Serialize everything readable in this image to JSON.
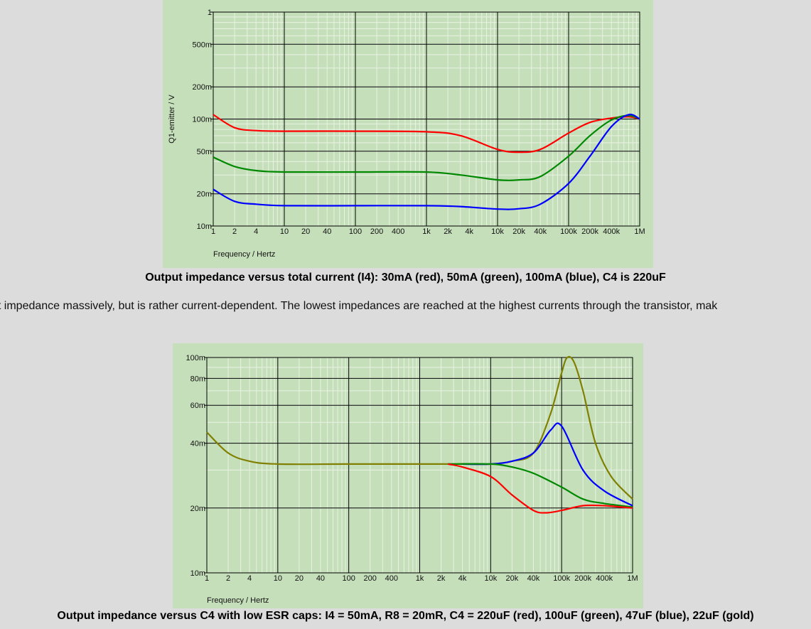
{
  "chart_data": [
    {
      "type": "line",
      "xlabel": "Frequency / Hertz",
      "ylabel": "Q1-emitter / V",
      "x_scale": "log",
      "y_scale": "log",
      "xlim": [
        1,
        1000000
      ],
      "ylim": [
        0.01,
        1
      ],
      "x_ticks": [
        {
          "v": 1,
          "label": "1"
        },
        {
          "v": 2,
          "label": "2"
        },
        {
          "v": 4,
          "label": "4"
        },
        {
          "v": 10,
          "label": "10"
        },
        {
          "v": 20,
          "label": "20"
        },
        {
          "v": 40,
          "label": "40"
        },
        {
          "v": 100,
          "label": "100"
        },
        {
          "v": 200,
          "label": "200"
        },
        {
          "v": 400,
          "label": "400"
        },
        {
          "v": 1000,
          "label": "1k"
        },
        {
          "v": 2000,
          "label": "2k"
        },
        {
          "v": 4000,
          "label": "4k"
        },
        {
          "v": 10000,
          "label": "10k"
        },
        {
          "v": 20000,
          "label": "20k"
        },
        {
          "v": 40000,
          "label": "40k"
        },
        {
          "v": 100000,
          "label": "100k"
        },
        {
          "v": 200000,
          "label": "200k"
        },
        {
          "v": 400000,
          "label": "400k"
        },
        {
          "v": 1000000,
          "label": "1M"
        }
      ],
      "y_ticks": [
        {
          "v": 1,
          "label": "1"
        },
        {
          "v": 0.5,
          "label": "500m"
        },
        {
          "v": 0.2,
          "label": "200m"
        },
        {
          "v": 0.1,
          "label": "100m"
        },
        {
          "v": 0.05,
          "label": "50m"
        },
        {
          "v": 0.02,
          "label": "20m"
        },
        {
          "v": 0.01,
          "label": "10m"
        }
      ],
      "grid": true,
      "series": [
        {
          "color": "#ff0000",
          "x": [
            1,
            2,
            4,
            10,
            100,
            1000,
            3000,
            10000,
            20000,
            40000,
            100000,
            200000,
            400000,
            700000,
            1000000
          ],
          "y": [
            0.11,
            0.083,
            0.078,
            0.077,
            0.077,
            0.076,
            0.07,
            0.052,
            0.049,
            0.052,
            0.074,
            0.093,
            0.102,
            0.105,
            0.1
          ]
        },
        {
          "color": "#008800",
          "x": [
            1,
            2,
            4,
            10,
            100,
            1000,
            3000,
            10000,
            20000,
            40000,
            100000,
            200000,
            400000,
            700000,
            1000000
          ],
          "y": [
            0.044,
            0.036,
            0.033,
            0.032,
            0.032,
            0.032,
            0.03,
            0.027,
            0.027,
            0.029,
            0.045,
            0.07,
            0.098,
            0.108,
            0.1
          ]
        },
        {
          "color": "#0000ff",
          "x": [
            1,
            2,
            4,
            10,
            100,
            1000,
            3000,
            10000,
            20000,
            40000,
            100000,
            200000,
            400000,
            700000,
            1000000
          ],
          "y": [
            0.022,
            0.017,
            0.016,
            0.0155,
            0.0155,
            0.0155,
            0.0152,
            0.0144,
            0.0145,
            0.016,
            0.025,
            0.045,
            0.085,
            0.11,
            0.1
          ]
        }
      ]
    },
    {
      "type": "line",
      "xlabel": "Frequency / Hertz",
      "ylabel": "",
      "x_scale": "log",
      "y_scale": "log",
      "xlim": [
        1,
        1000000
      ],
      "ylim": [
        0.01,
        0.1
      ],
      "x_ticks": [
        {
          "v": 1,
          "label": "1"
        },
        {
          "v": 2,
          "label": "2"
        },
        {
          "v": 4,
          "label": "4"
        },
        {
          "v": 10,
          "label": "10"
        },
        {
          "v": 20,
          "label": "20"
        },
        {
          "v": 40,
          "label": "40"
        },
        {
          "v": 100,
          "label": "100"
        },
        {
          "v": 200,
          "label": "200"
        },
        {
          "v": 400,
          "label": "400"
        },
        {
          "v": 1000,
          "label": "1k"
        },
        {
          "v": 2000,
          "label": "2k"
        },
        {
          "v": 4000,
          "label": "4k"
        },
        {
          "v": 10000,
          "label": "10k"
        },
        {
          "v": 20000,
          "label": "20k"
        },
        {
          "v": 40000,
          "label": "40k"
        },
        {
          "v": 100000,
          "label": "100k"
        },
        {
          "v": 200000,
          "label": "200k"
        },
        {
          "v": 400000,
          "label": "400k"
        },
        {
          "v": 1000000,
          "label": "1M"
        }
      ],
      "y_ticks": [
        {
          "v": 0.1,
          "label": "100m"
        },
        {
          "v": 0.08,
          "label": "80m"
        },
        {
          "v": 0.06,
          "label": "60m"
        },
        {
          "v": 0.04,
          "label": "40m"
        },
        {
          "v": 0.02,
          "label": "20m"
        },
        {
          "v": 0.01,
          "label": "10m"
        }
      ],
      "grid": true,
      "series": [
        {
          "color": "#808000",
          "x": [
            1,
            2,
            4,
            10,
            100,
            1000,
            4000,
            10000,
            20000,
            40000,
            70000,
            100000,
            120000,
            150000,
            200000,
            300000,
            500000,
            1000000
          ],
          "y": [
            0.045,
            0.036,
            0.033,
            0.032,
            0.032,
            0.032,
            0.032,
            0.032,
            0.033,
            0.036,
            0.055,
            0.085,
            0.1,
            0.095,
            0.07,
            0.04,
            0.028,
            0.022
          ]
        },
        {
          "color": "#0000ff",
          "x": [
            4000,
            10000,
            20000,
            40000,
            70000,
            100000,
            200000,
            400000,
            1000000
          ],
          "y": [
            0.032,
            0.032,
            0.033,
            0.036,
            0.046,
            0.048,
            0.03,
            0.024,
            0.0205
          ]
        },
        {
          "color": "#008800",
          "x": [
            2500,
            10000,
            20000,
            40000,
            100000,
            200000,
            400000,
            1000000
          ],
          "y": [
            0.032,
            0.032,
            0.031,
            0.029,
            0.025,
            0.022,
            0.021,
            0.0202
          ]
        },
        {
          "color": "#ff0000",
          "x": [
            2500,
            4000,
            10000,
            20000,
            40000,
            60000,
            100000,
            200000,
            400000,
            1000000
          ],
          "y": [
            0.032,
            0.031,
            0.028,
            0.023,
            0.0195,
            0.019,
            0.0195,
            0.0205,
            0.0205,
            0.02
          ]
        }
      ]
    }
  ],
  "captions": {
    "chart1": "Output impedance versus total current (I4): 30mA (red), 50mA (green), 100mA (blue), C4 is 220uF",
    "body": "ut impedance massively, but is rather current-dependent. The lowest impedances are reached at the highest currents through the transistor, mak",
    "chart2": "Output impedance versus C4 with low ESR caps: I4 = 50mA, R8 = 20mR, C4 = 220uF (red), 100uF (green), 47uF (blue), 22uF (gold)"
  }
}
